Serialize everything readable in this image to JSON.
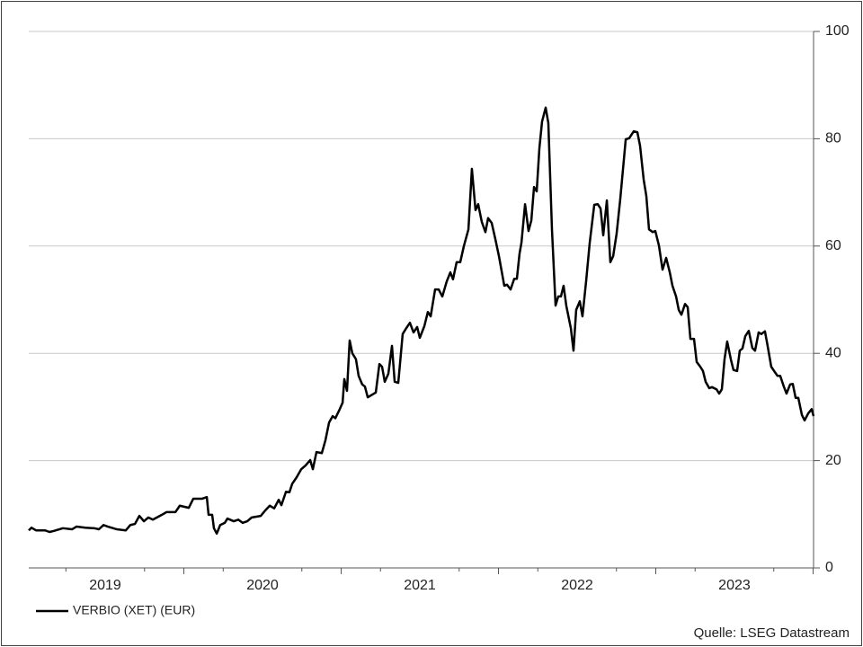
{
  "chart_data": {
    "type": "line",
    "source": "Quelle: LSEG Datastream",
    "x": [
      2018.514,
      2018.531,
      2018.56,
      2018.617,
      2018.646,
      2018.674,
      2018.731,
      2018.789,
      2018.817,
      2018.874,
      2018.931,
      2018.96,
      2018.989,
      2019.017,
      2019.074,
      2019.131,
      2019.16,
      2019.189,
      2019.217,
      2019.246,
      2019.274,
      2019.303,
      2019.36,
      2019.389,
      2019.446,
      2019.474,
      2019.531,
      2019.56,
      2019.617,
      2019.646,
      2019.657,
      2019.68,
      2019.691,
      2019.709,
      2019.731,
      2019.76,
      2019.777,
      2019.817,
      2019.846,
      2019.874,
      2019.903,
      2019.931,
      2019.989,
      2020.017,
      2020.046,
      2020.074,
      2020.103,
      2020.12,
      2020.149,
      2020.171,
      2020.189,
      2020.217,
      2020.246,
      2020.274,
      2020.303,
      2020.32,
      2020.343,
      2020.377,
      2020.4,
      2020.423,
      2020.446,
      2020.463,
      2020.491,
      2020.509,
      2020.52,
      2020.537,
      2020.554,
      2020.571,
      2020.594,
      2020.611,
      2020.634,
      2020.651,
      2020.669,
      2020.691,
      2020.72,
      2020.743,
      2020.76,
      2020.777,
      2020.8,
      2020.823,
      2020.84,
      2020.863,
      2020.891,
      2020.914,
      2020.937,
      2020.96,
      2020.983,
      2021.0,
      2021.029,
      2021.051,
      2021.069,
      2021.097,
      2021.12,
      2021.143,
      2021.171,
      2021.194,
      2021.211,
      2021.234,
      2021.257,
      2021.28,
      2021.309,
      2021.331,
      2021.354,
      2021.371,
      2021.394,
      2021.417,
      2021.434,
      2021.457,
      2021.48,
      2021.503,
      2021.537,
      2021.554,
      2021.577,
      2021.6,
      2021.617,
      2021.634,
      2021.646,
      2021.669,
      2021.691,
      2021.709,
      2021.726,
      2021.743,
      2021.76,
      2021.777,
      2021.8,
      2021.817,
      2021.84,
      2021.863,
      2021.88,
      2021.897,
      2021.914,
      2021.931,
      2021.96,
      2021.977,
      2021.994,
      2022.017,
      2022.034,
      2022.057,
      2022.08,
      2022.109,
      2022.131,
      2022.149,
      2022.166,
      2022.189,
      2022.211,
      2022.229,
      2022.251,
      2022.274,
      2022.309,
      2022.331,
      2022.36,
      2022.383,
      2022.4,
      2022.423,
      2022.44,
      2022.457,
      2022.48,
      2022.497,
      2022.52,
      2022.543,
      2022.566,
      2022.589,
      2022.606,
      2022.629,
      2022.646,
      2022.663,
      2022.686,
      2022.703,
      2022.72,
      2022.743,
      2022.76,
      2022.783,
      2022.8,
      2022.817,
      2022.84,
      2022.857,
      2022.886,
      2022.903,
      2022.92,
      2022.937,
      2022.954,
      2022.977,
      2022.994,
      2023.017,
      2023.034,
      2023.051,
      2023.069,
      2023.091,
      2023.114,
      2023.131,
      2023.154,
      2023.171,
      2023.194,
      2023.211,
      2023.234,
      2023.257,
      2023.274,
      2023.291,
      2023.314,
      2023.331,
      2023.354,
      2023.371,
      2023.389,
      2023.406,
      2023.429,
      2023.446,
      2023.469,
      2023.491,
      2023.503
    ],
    "series": [
      {
        "name": "VERBIO (XET) (EUR)",
        "color": "#000000",
        "values": [
          7.0,
          7.5,
          7.0,
          7.0,
          6.7,
          6.9,
          7.4,
          7.2,
          7.7,
          7.5,
          7.4,
          7.2,
          8.0,
          7.7,
          7.2,
          7.0,
          8.0,
          8.2,
          9.7,
          8.7,
          9.4,
          9.0,
          9.9,
          10.4,
          10.4,
          11.6,
          11.2,
          12.9,
          12.9,
          13.2,
          9.9,
          9.9,
          7.4,
          6.4,
          8.0,
          8.4,
          9.2,
          8.7,
          9.0,
          8.4,
          8.7,
          9.4,
          9.7,
          10.7,
          11.6,
          11.1,
          12.7,
          11.7,
          14.2,
          14.1,
          15.7,
          16.9,
          18.4,
          19.1,
          20.1,
          18.4,
          21.6,
          21.4,
          23.8,
          27.1,
          28.3,
          27.9,
          29.6,
          30.8,
          35.2,
          33.0,
          42.4,
          40.0,
          38.9,
          35.8,
          34.2,
          33.8,
          31.8,
          32.2,
          32.7,
          38.0,
          37.5,
          34.7,
          36.2,
          41.4,
          34.7,
          34.5,
          43.6,
          44.7,
          45.7,
          43.9,
          44.9,
          42.9,
          45.1,
          47.7,
          46.9,
          51.9,
          51.9,
          50.6,
          53.4,
          55.1,
          53.8,
          57.0,
          57.0,
          60.0,
          63.1,
          74.4,
          66.7,
          67.8,
          64.5,
          62.6,
          65.2,
          64.3,
          61.3,
          58.1,
          52.6,
          52.8,
          51.9,
          53.9,
          53.9,
          58.6,
          60.6,
          67.8,
          62.8,
          64.8,
          71.0,
          70.2,
          78.2,
          83.2,
          85.8,
          82.9,
          63.1,
          48.9,
          50.6,
          50.6,
          52.6,
          48.9,
          44.7,
          40.5,
          48.1,
          49.7,
          46.9,
          53.4,
          60.6,
          67.7,
          67.8,
          67.0,
          62.0,
          68.5,
          57.0,
          58.1,
          62.3,
          68.7,
          79.9,
          80.1,
          81.4,
          81.2,
          78.7,
          72.4,
          69.3,
          63.1,
          62.6,
          62.8,
          60.1,
          55.6,
          57.8,
          55.1,
          52.6,
          50.6,
          48.1,
          47.2,
          49.2,
          48.6,
          42.7,
          42.7,
          38.4,
          37.5,
          36.7,
          34.7,
          33.5,
          33.7,
          33.3,
          32.5,
          33.3,
          38.9,
          42.2,
          38.9,
          36.9,
          36.7,
          40.5,
          40.9,
          43.2,
          44.2,
          41.0,
          40.5,
          43.9,
          43.6,
          44.1,
          41.4,
          37.5,
          36.5,
          35.8,
          35.8,
          33.8,
          32.5,
          34.2,
          34.3,
          31.7,
          31.7,
          28.5,
          27.5,
          28.8,
          29.6,
          28.3
        ]
      }
    ],
    "xlim": [
      2018.514,
      2023.503
    ],
    "xticks": [
      2019,
      2020,
      2021,
      2022,
      2023
    ],
    "ylim": [
      0,
      100
    ],
    "yticks": [
      0,
      20,
      40,
      60,
      80,
      100
    ],
    "grid": true,
    "legend": "bottom-left"
  }
}
